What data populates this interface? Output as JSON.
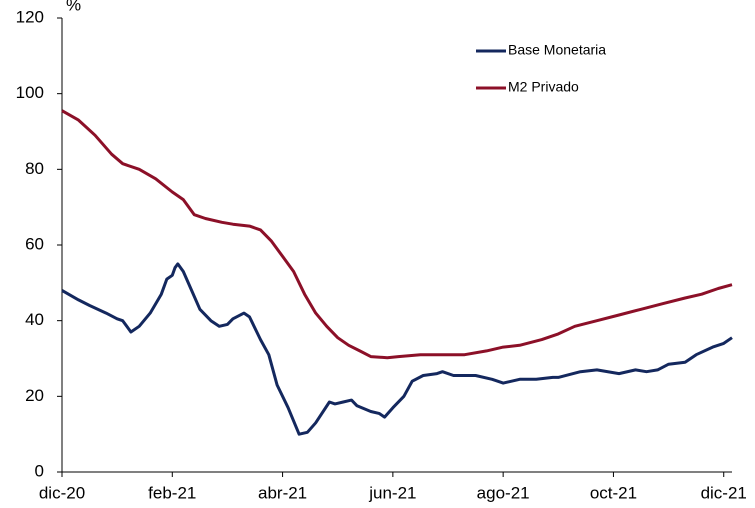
{
  "chart_data": {
    "type": "line",
    "y_unit_label": "%",
    "xlim": [
      0,
      12.15
    ],
    "xticks": [
      {
        "value": 0,
        "label": "dic-20"
      },
      {
        "value": 2,
        "label": "feb-21"
      },
      {
        "value": 4,
        "label": "abr-21"
      },
      {
        "value": 6,
        "label": "jun-21"
      },
      {
        "value": 8,
        "label": "ago-21"
      },
      {
        "value": 10,
        "label": "oct-21"
      },
      {
        "value": 12,
        "label": "dic-21"
      }
    ],
    "ylim": [
      0,
      120
    ],
    "yticks": [
      0,
      20,
      40,
      60,
      80,
      100,
      120
    ],
    "grid": false,
    "legend": "upper right",
    "series": [
      {
        "name": "Base Monetaria",
        "color": "#14285e",
        "x": [
          0,
          0.3,
          0.5,
          0.8,
          1.0,
          1.1,
          1.2,
          1.25,
          1.4,
          1.6,
          1.8,
          1.9,
          2.0,
          2.05,
          2.1,
          2.2,
          2.35,
          2.5,
          2.7,
          2.85,
          3.0,
          3.1,
          3.3,
          3.4,
          3.6,
          3.75,
          3.9,
          4.1,
          4.3,
          4.45,
          4.6,
          4.85,
          4.95,
          5.1,
          5.25,
          5.35,
          5.6,
          5.75,
          5.85,
          6.0,
          6.2,
          6.35,
          6.55,
          6.8,
          6.9,
          7.1,
          7.5,
          7.8,
          8.0,
          8.3,
          8.6,
          8.9,
          9.0,
          9.4,
          9.7,
          10.1,
          10.4,
          10.6,
          10.8,
          11.0,
          11.3,
          11.5,
          11.8,
          12.0,
          12.15
        ],
        "values": [
          48,
          45.5,
          44,
          42,
          40.5,
          40,
          38,
          37,
          38.5,
          42,
          47,
          51,
          52,
          54,
          55,
          53,
          48,
          43,
          40,
          38.5,
          39,
          40.5,
          42,
          41,
          35,
          31,
          23,
          17,
          10,
          10.5,
          13,
          18.5,
          18,
          18.5,
          19,
          17.5,
          16,
          15.5,
          14.5,
          17,
          20,
          24,
          25.5,
          26,
          26.5,
          25.5,
          25.5,
          24.5,
          23.5,
          24.5,
          24.5,
          25,
          25,
          26.5,
          27,
          26,
          27,
          26.5,
          27,
          28.5,
          29,
          31,
          33,
          34,
          35.5
        ]
      },
      {
        "name": "M2 Privado",
        "color": "#8c1028",
        "x": [
          0,
          0.3,
          0.6,
          0.9,
          1.1,
          1.4,
          1.7,
          2.0,
          2.2,
          2.4,
          2.6,
          2.9,
          3.1,
          3.4,
          3.6,
          3.8,
          4.0,
          4.2,
          4.4,
          4.6,
          4.8,
          5.0,
          5.2,
          5.4,
          5.6,
          5.9,
          6.1,
          6.5,
          6.8,
          7.0,
          7.3,
          7.7,
          8.0,
          8.3,
          8.7,
          9.0,
          9.3,
          9.7,
          10.1,
          10.5,
          10.9,
          11.3,
          11.6,
          11.9,
          12.15
        ],
        "values": [
          95.5,
          93,
          89,
          84,
          81.5,
          80,
          77.5,
          74,
          72,
          68,
          67,
          66,
          65.5,
          65,
          64,
          61,
          57,
          53,
          47,
          42,
          38.5,
          35.5,
          33.5,
          32,
          30.5,
          30.2,
          30.5,
          31,
          31,
          31,
          31,
          32,
          33,
          33.5,
          35,
          36.5,
          38.5,
          40,
          41.5,
          43,
          44.5,
          46,
          47,
          48.5,
          49.5
        ]
      }
    ]
  }
}
